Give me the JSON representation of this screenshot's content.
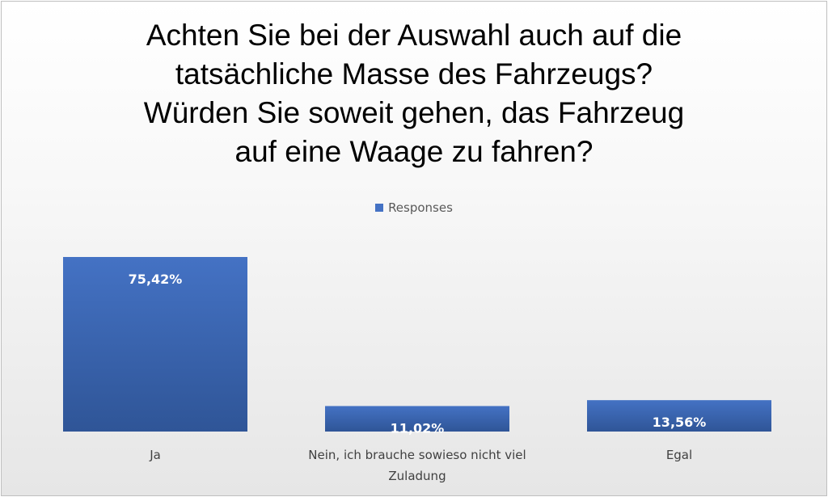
{
  "chart_data": {
    "type": "bar",
    "title_lines": [
      "Achten Sie bei der Auswahl auch auf die",
      "tatsächliche Masse des Fahrzeugs?",
      "Würden Sie soweit gehen, das Fahrzeug",
      "auf eine Waage zu fahren?"
    ],
    "legend_position": "top",
    "series": [
      {
        "name": "Responses",
        "values": [
          75.42,
          11.02,
          13.56
        ],
        "labels": [
          "75,42%",
          "11,02%",
          "13,56%"
        ]
      }
    ],
    "categories": [
      [
        "Ja"
      ],
      [
        "Nein, ich brauche sowieso nicht viel",
        "Zuladung"
      ],
      [
        "Egal"
      ]
    ],
    "ylim": [
      0,
      75.42
    ],
    "grid": false,
    "colors": {
      "bar": "#4472c4",
      "bar_dark": "#2f5597"
    }
  }
}
